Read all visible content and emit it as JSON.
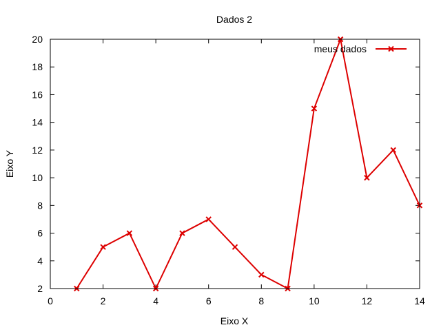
{
  "chart_data": {
    "type": "line",
    "title": "Dados 2",
    "xlabel": "Eixo X",
    "ylabel": "Eixo Y",
    "xlim": [
      0,
      14
    ],
    "ylim": [
      2,
      20
    ],
    "x_ticks": [
      0,
      2,
      4,
      6,
      8,
      10,
      12,
      14
    ],
    "y_ticks": [
      2,
      4,
      6,
      8,
      10,
      12,
      14,
      16,
      18,
      20
    ],
    "grid": false,
    "legend_position": "top-right",
    "series": [
      {
        "name": "meus dados",
        "color": "#dd0000",
        "marker": "x",
        "x": [
          1,
          2,
          3,
          4,
          5,
          6,
          7,
          8,
          9,
          10,
          11,
          12,
          13,
          14
        ],
        "y": [
          2,
          5,
          6,
          2,
          6,
          7,
          5,
          3,
          2,
          15,
          20,
          10,
          12,
          8
        ]
      }
    ]
  }
}
